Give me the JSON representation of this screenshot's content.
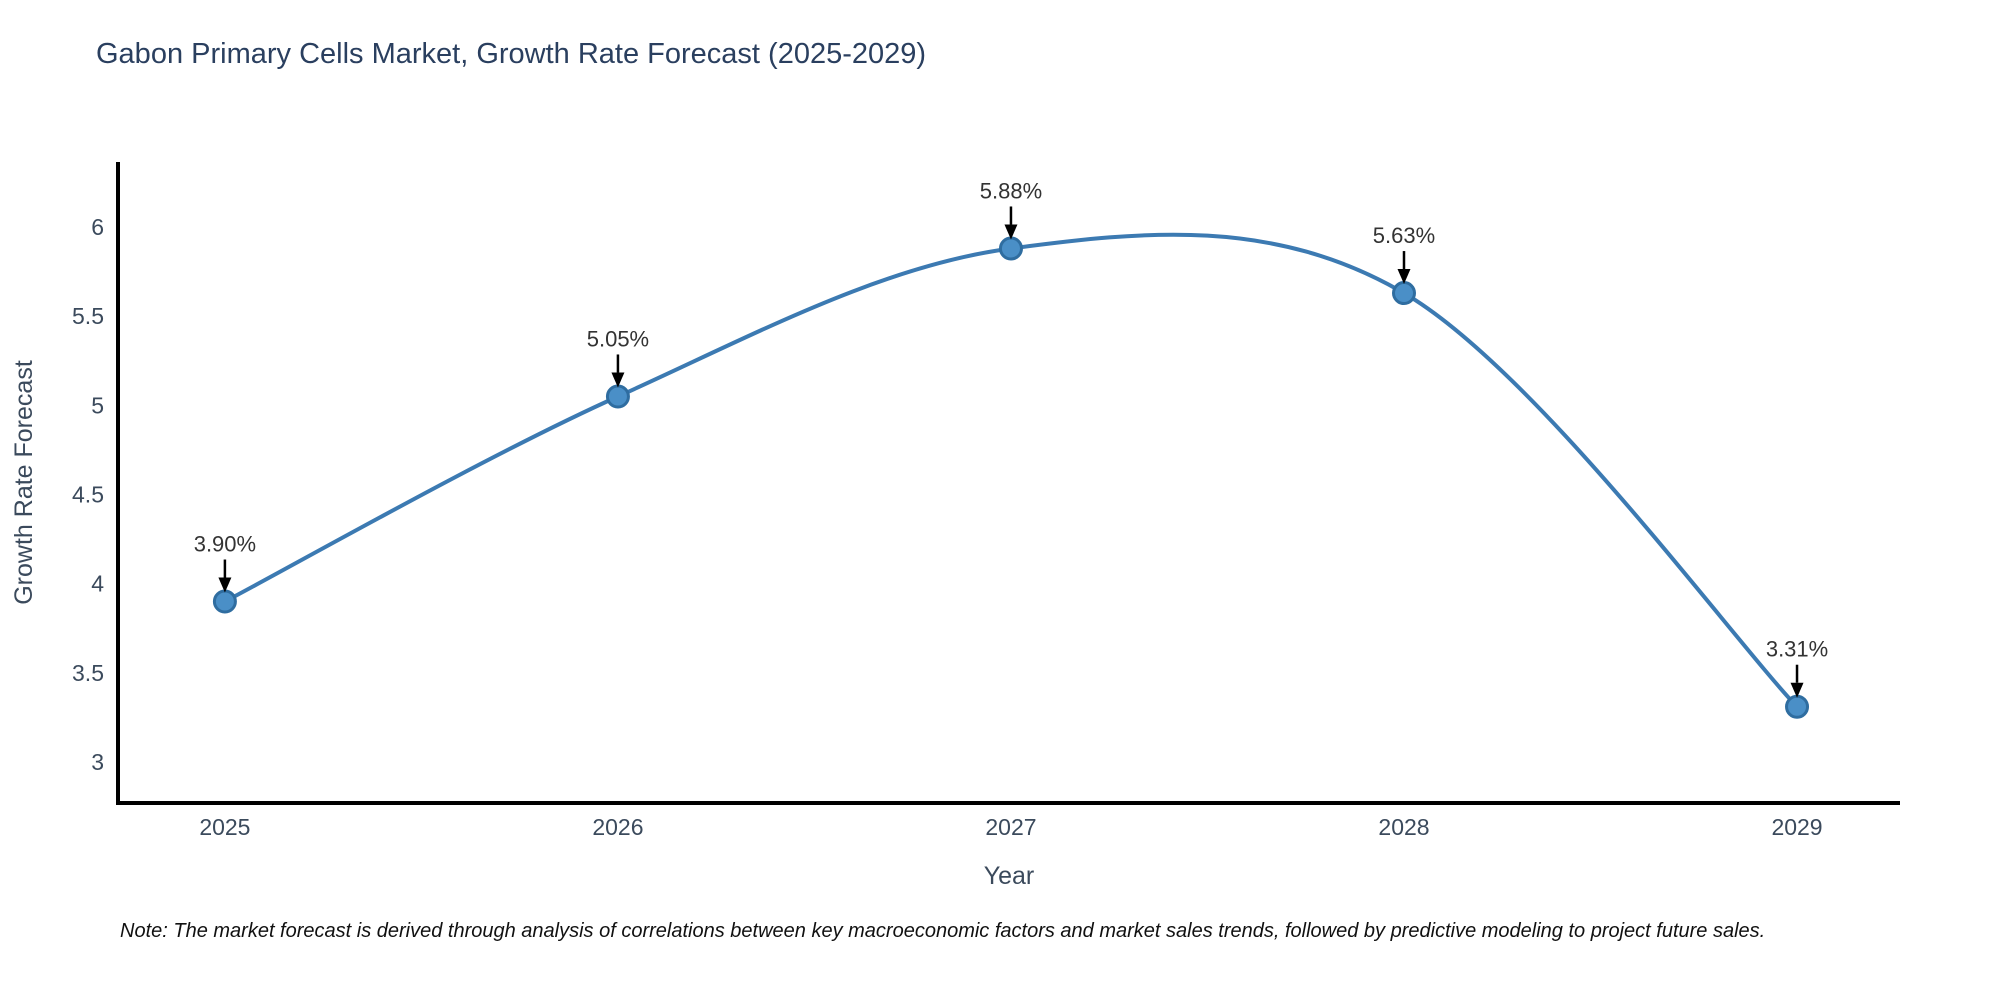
{
  "title": "Gabon Primary Cells Market, Growth Rate Forecast (2025-2029)",
  "note": "Note: The market forecast is derived through analysis of correlations between key macroeconomic factors and market sales trends, followed by predictive modeling to project future sales.",
  "chart_data": {
    "type": "line",
    "line_shape": "spline",
    "title": "Gabon Primary Cells Market, Growth Rate Forecast (2025-2029)",
    "xlabel": "Year",
    "ylabel": "Growth Rate Forecast",
    "x": [
      2025,
      2026,
      2027,
      2028,
      2029
    ],
    "y": [
      3.9,
      5.05,
      5.88,
      5.63,
      3.31
    ],
    "point_labels": [
      "3.90%",
      "5.05%",
      "5.88%",
      "5.63%",
      "3.31%"
    ],
    "yticks": [
      3,
      3.5,
      4,
      4.5,
      5,
      5.5,
      6
    ],
    "xlim": [
      2024.728,
      2029.262
    ],
    "ylim": [
      2.77,
      6.365
    ],
    "grid": false,
    "legend": "none",
    "colors": {
      "line": "#3c7ab2",
      "marker_fill": "#4a8fc7",
      "marker_edge": "#2f6da0",
      "axis": "#000000",
      "tick_label": "#3b4a5c",
      "axis_title": "#3b4a5c",
      "title": "#2a3f5f",
      "annotation_text": "#333333",
      "arrow": "#000000"
    }
  }
}
